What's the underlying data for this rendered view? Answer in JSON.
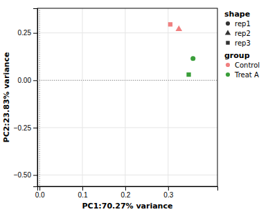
{
  "chart_data": {
    "type": "scatter",
    "x_label": "PC1:70.27% variance",
    "y_label": "PC2:23.83% variance",
    "xlim": [
      -0.005,
      0.415
    ],
    "ylim": [
      -0.56,
      0.38
    ],
    "xticks": [
      {
        "value": 0.0,
        "label": "0.0"
      },
      0.1,
      0.2,
      0.3
    ],
    "yticks": [
      {
        "value": -0.5,
        "label": "−0.50"
      },
      {
        "value": -0.25,
        "label": "−0.25"
      },
      {
        "value": 0.0,
        "label": "0.00"
      },
      0.25
    ],
    "grid": true,
    "legend": "right",
    "reference_lines": [
      {
        "axis": "x",
        "value": 0.0,
        "line_style": "dotted"
      },
      {
        "axis": "y",
        "value": 0.0,
        "line_style": "dotted"
      }
    ],
    "series": [
      {
        "name": "Control",
        "color": "#f08080",
        "x": [
          0.305,
          0.325
        ],
        "values": [
          0.295,
          0.27
        ],
        "shape": [
          "rep3",
          "rep2"
        ]
      },
      {
        "name": "Treat A",
        "color": "#3a9e3a",
        "x": [
          0.358,
          0.348
        ],
        "values": [
          0.115,
          0.03
        ],
        "shape": [
          "rep1",
          "rep3"
        ]
      }
    ],
    "shape_legend": {
      "title": "shape",
      "names": [
        "rep1",
        "rep2",
        "rep3"
      ],
      "markers": [
        "circle",
        "triangle",
        "square"
      ]
    },
    "color_legend": {
      "title": "group"
    }
  }
}
